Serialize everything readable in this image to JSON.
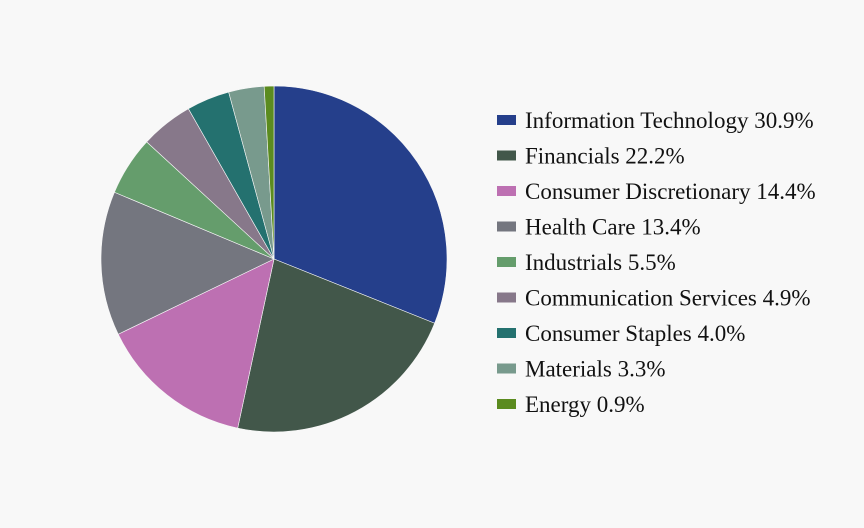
{
  "chart_data": {
    "type": "pie",
    "title": "",
    "legend_position": "right",
    "slices": [
      {
        "label": "Information Technology",
        "value": 30.9,
        "value_label": "30.9%",
        "color": "#253f8b"
      },
      {
        "label": "Financials",
        "value": 22.2,
        "value_label": "22.2%",
        "color": "#42574a"
      },
      {
        "label": "Consumer Discretionary",
        "value": 14.4,
        "value_label": "14.4%",
        "color": "#bd70b2"
      },
      {
        "label": "Health Care",
        "value": 13.4,
        "value_label": "13.4%",
        "color": "#74767f"
      },
      {
        "label": "Industrials",
        "value": 5.5,
        "value_label": "5.5%",
        "color": "#659d6c"
      },
      {
        "label": "Communication Services",
        "value": 4.9,
        "value_label": "4.9%",
        "color": "#87788a"
      },
      {
        "label": "Consumer Staples",
        "value": 4.0,
        "value_label": "4.0%",
        "color": "#24716f"
      },
      {
        "label": "Materials",
        "value": 3.3,
        "value_label": "3.3%",
        "color": "#789a8d"
      },
      {
        "label": "Energy",
        "value": 0.9,
        "value_label": "0.9%",
        "color": "#5b8b1f"
      }
    ]
  }
}
